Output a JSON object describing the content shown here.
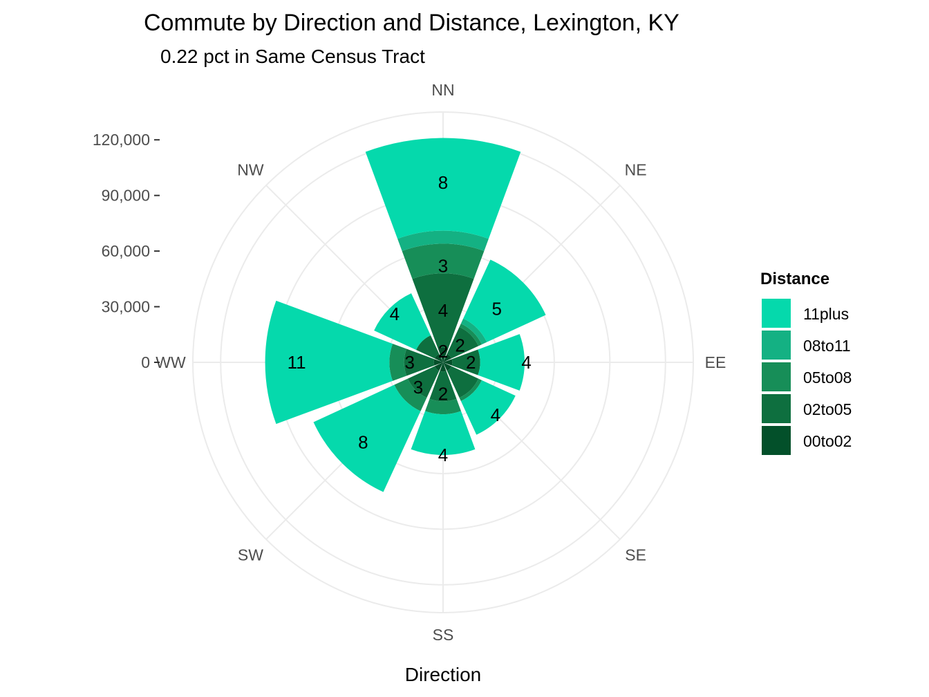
{
  "chart_data": {
    "type": "bar",
    "coord": "polar",
    "title": "Commute by Direction and Distance, Lexington, KY",
    "subtitle": "0.22 pct in Same Census Tract",
    "xlabel": "Direction",
    "ylabel": "",
    "directions": [
      "NN",
      "NE",
      "EE",
      "SE",
      "SS",
      "SW",
      "WW",
      "NW"
    ],
    "ylim": [
      0,
      135000
    ],
    "yticks": [
      0,
      30000,
      60000,
      90000,
      120000
    ],
    "ytick_labels": [
      "0",
      "30,000",
      "60,000",
      "90,000",
      "120,000"
    ],
    "legend_title": "Distance",
    "legend_position": "right",
    "grid": true,
    "series": [
      {
        "name": "00to02",
        "color": "#03502a",
        "values": [
          8000,
          5000,
          5000,
          5000,
          5000,
          5000,
          5000,
          5000
        ]
      },
      {
        "name": "02to05",
        "color": "#0e6f3f",
        "values": [
          40000,
          16000,
          15000,
          16000,
          16000,
          16000,
          16000,
          11000
        ]
      },
      {
        "name": "05to08",
        "color": "#178e58",
        "values": [
          16000,
          2000,
          0,
          2000,
          7000,
          8000,
          8000,
          0
        ]
      },
      {
        "name": "08to11",
        "color": "#14b183",
        "values": [
          7000,
          3000,
          0,
          0,
          0,
          0,
          0,
          0
        ]
      },
      {
        "name": "11plus",
        "color": "#05d9ac",
        "values": [
          50000,
          35000,
          24000,
          20000,
          22000,
          48000,
          67000,
          25000
        ]
      }
    ],
    "data_labels": [
      {
        "direction": "NN",
        "series": "11plus",
        "text": "8",
        "y": 97000
      },
      {
        "direction": "NN",
        "series": "02to05",
        "text": "3",
        "y": 52000
      },
      {
        "direction": "NN",
        "series": "00to02",
        "text": "4",
        "y": 28000
      },
      {
        "direction": "NN",
        "series": "00to02",
        "text": "2",
        "y": 6000
      },
      {
        "direction": "NE",
        "series": "11plus",
        "text": "5",
        "y": 41000
      },
      {
        "direction": "NE",
        "series": "00to02",
        "text": "2",
        "y": 13000
      },
      {
        "direction": "EE",
        "series": "11plus",
        "text": "4",
        "y": 45000
      },
      {
        "direction": "EE",
        "series": "00to02",
        "text": "2",
        "y": 15000
      },
      {
        "direction": "SE",
        "series": "11plus",
        "text": "4",
        "y": 40000
      },
      {
        "direction": "SS",
        "series": "11plus",
        "text": "4",
        "y": 50000
      },
      {
        "direction": "SS",
        "series": "00to02",
        "text": "2",
        "y": 17000
      },
      {
        "direction": "SW",
        "series": "11plus",
        "text": "8",
        "y": 61000
      },
      {
        "direction": "SW",
        "series": "00to02",
        "text": "3",
        "y": 19000
      },
      {
        "direction": "WW",
        "series": "11plus",
        "text": "11",
        "y": 79000
      },
      {
        "direction": "WW",
        "series": "00to02",
        "text": "3",
        "y": 18000
      },
      {
        "direction": "NW",
        "series": "11plus",
        "text": "4",
        "y": 37000
      }
    ]
  }
}
